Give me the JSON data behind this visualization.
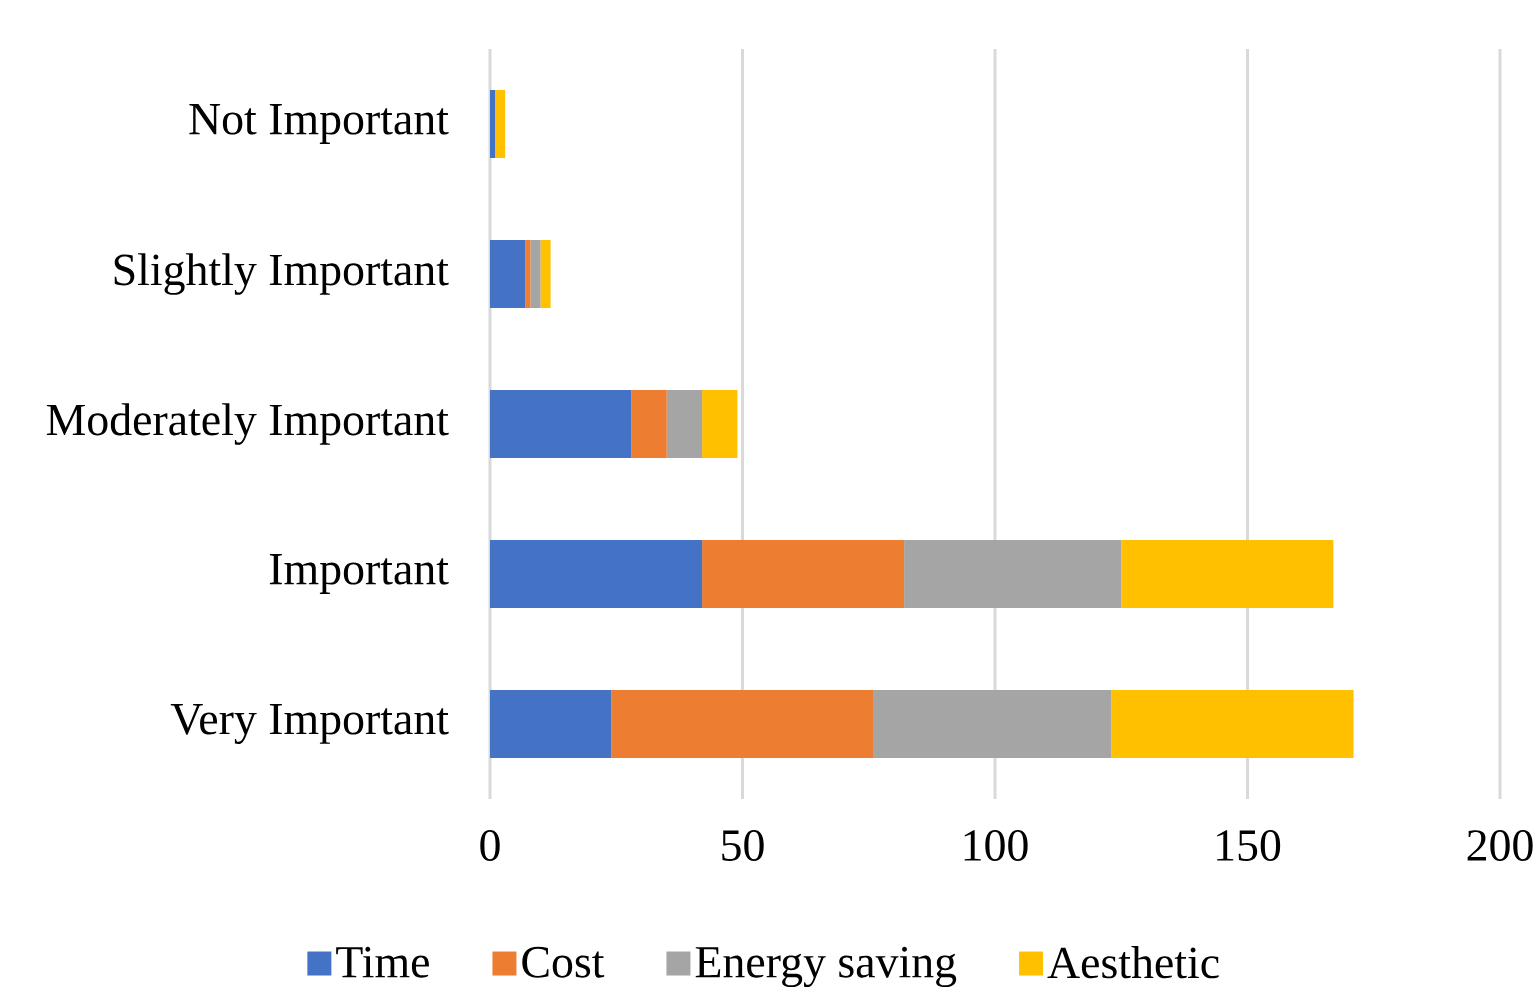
{
  "chart_data": {
    "type": "bar",
    "orientation": "horizontal",
    "stacked": true,
    "categories": [
      "Not Important",
      "Slightly Important",
      "Moderately Important",
      "Important",
      "Very Important"
    ],
    "series": [
      {
        "name": "Time",
        "color": "#4472c4",
        "values": [
          1,
          7,
          28,
          42,
          24
        ]
      },
      {
        "name": "Cost",
        "color": "#ed7d31",
        "values": [
          0,
          1,
          7,
          40,
          52
        ]
      },
      {
        "name": "Energy saving",
        "color": "#a5a5a5",
        "values": [
          0,
          2,
          7,
          43,
          47
        ]
      },
      {
        "name": "Aesthetic",
        "color": "#ffc000",
        "values": [
          2,
          2,
          7,
          42,
          48
        ]
      }
    ],
    "xlim": [
      0,
      200
    ],
    "xticks": [
      0,
      50,
      100,
      150,
      200
    ],
    "grid": "x",
    "legend": "bottom"
  }
}
